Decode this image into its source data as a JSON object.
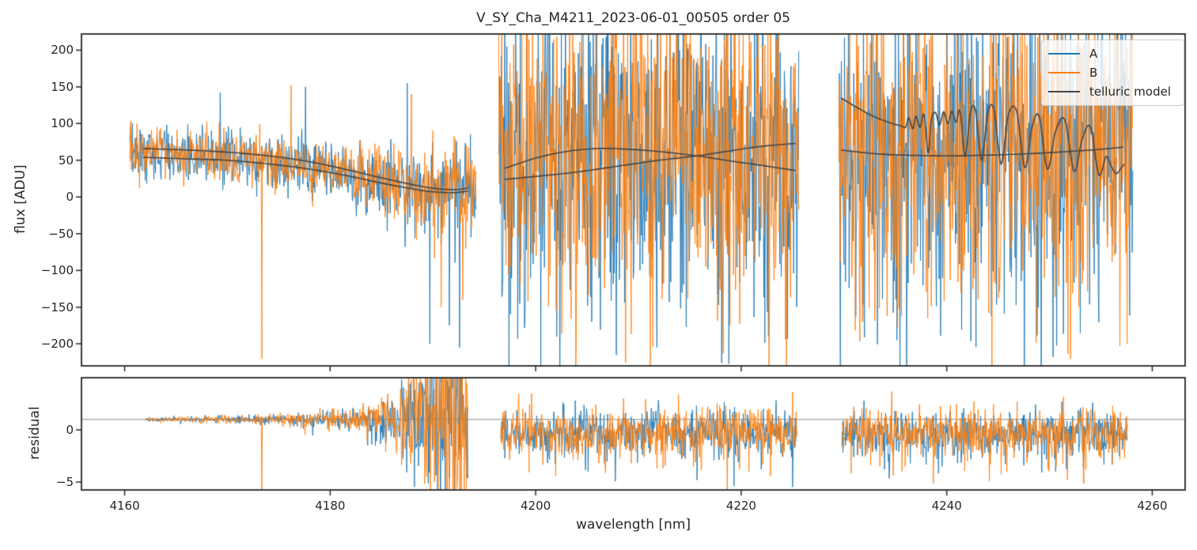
{
  "chart_data": {
    "type": "line",
    "title": "V_SY_Cha_M4211_2023-06-01_00505  order 05",
    "xlabel": "wavelength [nm]",
    "ylabel_top": "flux [ADU]",
    "ylabel_bottom": "residual",
    "xlim": [
      4155.8,
      4263.2
    ],
    "x_ticks": [
      4160,
      4180,
      4200,
      4220,
      4240,
      4260
    ],
    "x_tick_labels": [
      "4160",
      "4180",
      "4200",
      "4220",
      "4240",
      "4260"
    ],
    "top_panel": {
      "ylim": [
        -230,
        222
      ],
      "y_ticks": [
        200,
        150,
        100,
        50,
        0,
        -50,
        -100,
        -150,
        -200
      ],
      "y_tick_labels": [
        "200",
        "150",
        "100",
        "50",
        "0",
        "−50",
        "−100",
        "−150",
        "−200"
      ]
    },
    "bottom_panel": {
      "ylim": [
        -5.76,
        5.0
      ],
      "y_ticks": [
        0,
        -5
      ],
      "y_tick_labels": [
        "0",
        "−5"
      ],
      "hline": 1.0,
      "hline_color": "#8a8a8a"
    },
    "series": [
      {
        "name": "A",
        "color": "#1f77b4"
      },
      {
        "name": "B",
        "color": "#ff7f0e"
      },
      {
        "name": "telluric model",
        "color": "#454545"
      }
    ],
    "legend_position": "upper right",
    "grid": false,
    "seed": 11,
    "flux_noise": {
      "step_nm": 0.05,
      "segments": [
        {
          "range": [
            4160.5,
            4194.2
          ],
          "envelope": {
            "lambda": [
              4160.5,
              4164,
              4168,
              4172,
              4176,
              4180,
              4183,
              4186,
              4189,
              4191,
              4193,
              4194.2
            ],
            "mean": [
              60,
              59,
              56,
              52,
              45,
              35,
              26,
              17,
              10,
              7,
              6,
              8
            ],
            "sigma": [
              17,
              17,
              18,
              18,
              19,
              20,
              22,
              25,
              28,
              31,
              33,
              33
            ]
          }
        },
        {
          "range": [
            4196.4,
            4225.6
          ],
          "envelope": {
            "lambda": [
              4196.4,
              4200,
              4210,
              4220,
              4225.6
            ],
            "mean": [
              50,
              55,
              58,
              55,
              50
            ],
            "sigma": [
              100,
              112,
              115,
              112,
              105
            ]
          }
        },
        {
          "range": [
            4229.5,
            4258.1
          ],
          "envelope": {
            "lambda": [
              4229.5,
              4235,
              4245,
              4252,
              4258.1
            ],
            "mean": [
              55,
              60,
              62,
              58,
              55
            ],
            "sigma": [
              105,
              115,
              115,
              112,
              105
            ]
          }
        }
      ],
      "spikes": [
        {
          "series": "B",
          "lambda": 4173.35,
          "value": -220
        },
        {
          "series": "A",
          "lambda": 4169.3,
          "value": 142
        },
        {
          "series": "B",
          "lambda": 4176.2,
          "value": 152
        },
        {
          "series": "A",
          "lambda": 4177.6,
          "value": 150
        },
        {
          "series": "A",
          "lambda": 4187.5,
          "value": 155
        },
        {
          "series": "B",
          "lambda": 4187.9,
          "value": 140
        },
        {
          "series": "A",
          "lambda": 4189.7,
          "value": -200
        },
        {
          "series": "B",
          "lambda": 4190.8,
          "value": -150
        },
        {
          "series": "A",
          "lambda": 4191.6,
          "value": -175
        },
        {
          "series": "A",
          "lambda": 4192.6,
          "value": -205
        },
        {
          "series": "B",
          "lambda": 4192.9,
          "value": -140
        }
      ]
    },
    "residual_noise": {
      "step_nm": 0.05,
      "segments": [
        {
          "range": [
            4162.0,
            4193.4
          ],
          "envelope": {
            "lambda": [
              4162,
              4166,
              4170,
              4174,
              4178,
              4181,
              4184,
              4186,
              4188,
              4190,
              4192,
              4193.4
            ],
            "mean": [
              1,
              1,
              1,
              1,
              1,
              1,
              1,
              1,
              1,
              1,
              1,
              1
            ],
            "sigma": [
              0.12,
              0.15,
              0.2,
              0.25,
              0.38,
              0.55,
              0.9,
              1.6,
              2.6,
              4.0,
              5.0,
              5.5
            ]
          }
        },
        {
          "range": [
            4196.6,
            4225.4
          ],
          "envelope": {
            "lambda": [
              4196.6,
              4200,
              4210,
              4220,
              4225.4
            ],
            "mean": [
              -0.1,
              -0.2,
              -0.2,
              -0.2,
              -0.1
            ],
            "sigma": [
              1.0,
              1.2,
              1.2,
              1.2,
              1.0
            ]
          },
          "tail": {
            "prob": 0.09,
            "scale": 1.7
          }
        },
        {
          "range": [
            4229.8,
            4257.6
          ],
          "envelope": {
            "lambda": [
              4229.8,
              4235,
              4245,
              4252,
              4257.6
            ],
            "mean": [
              -0.15,
              -0.25,
              -0.25,
              -0.25,
              -0.15
            ],
            "sigma": [
              1.0,
              1.15,
              1.15,
              1.15,
              1.0
            ]
          },
          "tail": {
            "prob": 0.09,
            "scale": 1.7
          }
        }
      ],
      "spikes": [
        {
          "series": "B",
          "lambda": 4173.35,
          "value": -6.5
        }
      ]
    },
    "telluric_model": {
      "curves": [
        {
          "segment": 1,
          "points": [
            [
              4161.8,
              66
            ],
            [
              4166,
              64
            ],
            [
              4170,
              61
            ],
            [
              4174,
              56
            ],
            [
              4178,
              48
            ],
            [
              4182,
              36
            ],
            [
              4185,
              26
            ],
            [
              4188,
              17
            ],
            [
              4190,
              12
            ],
            [
              4192,
              10
            ],
            [
              4193.4,
              12
            ]
          ]
        },
        {
          "segment": 1,
          "points": [
            [
              4161.8,
              54
            ],
            [
              4166,
              52
            ],
            [
              4170,
              50
            ],
            [
              4174,
              45
            ],
            [
              4178,
              38
            ],
            [
              4182,
              28
            ],
            [
              4185,
              19
            ],
            [
              4188,
              11
            ],
            [
              4190,
              7
            ],
            [
              4192,
              6
            ],
            [
              4193.4,
              8
            ]
          ]
        },
        {
          "segment": 2,
          "points": [
            [
              4197,
              39
            ],
            [
              4200,
              53
            ],
            [
              4203,
              62
            ],
            [
              4206,
              66
            ],
            [
              4209,
              65
            ],
            [
              4212,
              62
            ],
            [
              4215.7,
              56
            ],
            [
              4219,
              49
            ],
            [
              4222,
              43
            ],
            [
              4225.3,
              36
            ]
          ]
        },
        {
          "segment": 2,
          "points": [
            [
              4197,
              24
            ],
            [
              4200,
              28
            ],
            [
              4204,
              34
            ],
            [
              4208,
              42
            ],
            [
              4212,
              50
            ],
            [
              4215.7,
              56
            ],
            [
              4219,
              63
            ],
            [
              4222,
              69
            ],
            [
              4225.3,
              73
            ]
          ]
        },
        {
          "segment": 3,
          "points": [
            [
              4229.7,
              64
            ],
            [
              4233,
              59
            ],
            [
              4236,
              57
            ],
            [
              4240,
              56
            ],
            [
              4244,
              57
            ],
            [
              4248,
              59
            ],
            [
              4252,
              62
            ],
            [
              4255,
              65
            ],
            [
              4257.2,
              68
            ]
          ]
        },
        {
          "segment": 3,
          "points": [
            [
              4229.7,
              135
            ],
            [
              4231.5,
              120
            ],
            [
              4233,
              109
            ],
            [
              4234.5,
              101
            ],
            [
              4235.5,
              97
            ],
            [
              4236.0,
              95
            ],
            [
              4236.3,
              108
            ],
            [
              4236.7,
              93
            ],
            [
              4237.0,
              110
            ],
            [
              4237.4,
              95
            ],
            [
              4237.8,
              112
            ],
            [
              4238.2,
              60
            ],
            [
              4238.5,
              105
            ],
            [
              4238.9,
              115
            ],
            [
              4239.3,
              98
            ],
            [
              4239.7,
              116
            ],
            [
              4240.1,
              100
            ],
            [
              4240.5,
              117
            ],
            [
              4240.9,
              102
            ],
            [
              4241.3,
              117
            ],
            [
              4241.8,
              55
            ],
            [
              4242.3,
              115
            ],
            [
              4242.8,
              118
            ],
            [
              4243.4,
              50
            ],
            [
              4244.0,
              115
            ],
            [
              4244.6,
              119
            ],
            [
              4245.3,
              45
            ],
            [
              4246.0,
              112
            ],
            [
              4246.8,
              117
            ],
            [
              4247.6,
              40
            ],
            [
              4248.3,
              95
            ],
            [
              4249.0,
              110
            ],
            [
              4249.8,
              38
            ],
            [
              4250.6,
              90
            ],
            [
              4251.5,
              105
            ],
            [
              4252.4,
              35
            ],
            [
              4253.2,
              80
            ],
            [
              4254.0,
              95
            ],
            [
              4254.8,
              30
            ],
            [
              4255.5,
              55
            ],
            [
              4256.0,
              42
            ],
            [
              4256.5,
              32
            ],
            [
              4257.0,
              40
            ],
            [
              4257.3,
              45
            ]
          ]
        }
      ]
    }
  }
}
